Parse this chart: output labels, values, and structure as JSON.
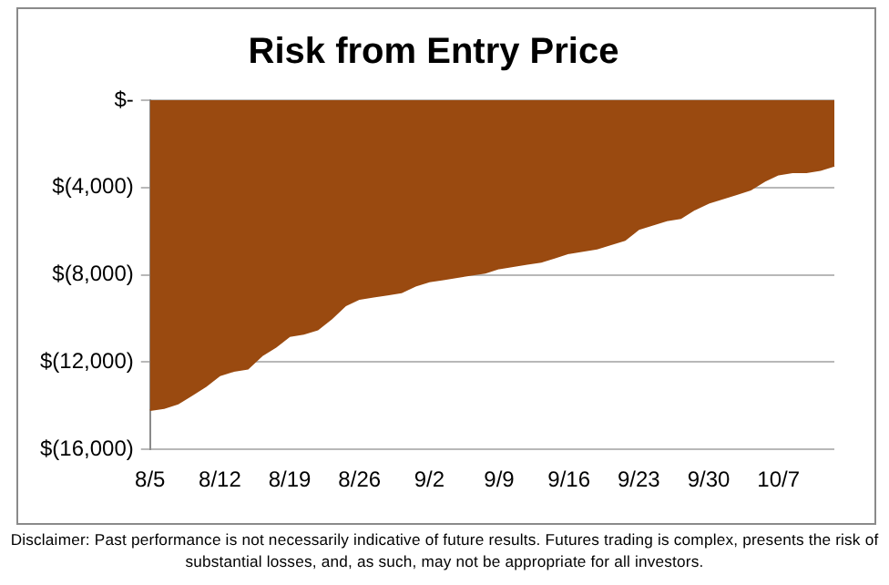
{
  "chart_data": {
    "type": "area",
    "title": "Risk from Entry Price",
    "categories": [
      "8/5",
      null,
      null,
      null,
      null,
      "8/12",
      null,
      null,
      null,
      null,
      "8/19",
      null,
      null,
      null,
      null,
      "8/26",
      null,
      null,
      null,
      null,
      "9/2",
      null,
      null,
      null,
      null,
      "9/9",
      null,
      null,
      null,
      null,
      "9/16",
      null,
      null,
      null,
      null,
      "9/23",
      null,
      null,
      null,
      null,
      "9/30",
      null,
      null,
      null,
      null,
      "10/7",
      null,
      null,
      null,
      null
    ],
    "series": [
      {
        "color": "#9a4a10",
        "values": [
          -14200,
          -14100,
          -13900,
          -13500,
          -13100,
          -12600,
          -12400,
          -12300,
          -11700,
          -11300,
          -10800,
          -10700,
          -10500,
          -10000,
          -9400,
          -9100,
          -9000,
          -8900,
          -8800,
          -8500,
          -8300,
          -8200,
          -8100,
          -8000,
          -7900,
          -7700,
          -7600,
          -7500,
          -7400,
          -7200,
          -7000,
          -6900,
          -6800,
          -6600,
          -6400,
          -5900,
          -5700,
          -5500,
          -5400,
          -5000,
          -4700,
          -4500,
          -4300,
          -4100,
          -3700,
          -3400,
          -3300,
          -3300,
          -3200,
          -3000
        ]
      }
    ],
    "ylim": [
      -16000,
      0
    ],
    "yticks": [
      {
        "value": 0,
        "label": "$-"
      },
      {
        "value": -4000,
        "label": "$(4,000)"
      },
      {
        "value": -8000,
        "label": "$(8,000)"
      },
      {
        "value": -12000,
        "label": "$(12,000)"
      },
      {
        "value": -16000,
        "label": "$(16,000)"
      }
    ],
    "grid": "y",
    "legend": false,
    "annotations": [
      "Disclaimer: Past performance is not necessarily indicative of future results. Futures trading is complex, presents the risk of substantial losses, and, as such, may not be appropriate for all investors."
    ]
  }
}
